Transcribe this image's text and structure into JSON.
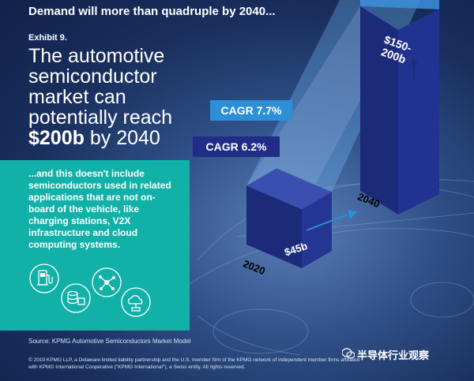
{
  "header": {
    "title": "Demand will more than quadruple by 2040...",
    "exhibit": "Exhibit 9.",
    "headline_main": "The automotive semiconductor market can potentially reach",
    "headline_value": "$200b",
    "headline_suffix": "by 2040"
  },
  "callout": {
    "text": "...and this doesn't include semiconductors used in related applications that are not on-board of the vehicle, like charging stations, V2X infrastructure and cloud computing systems.",
    "icons": [
      "charging-station-icon",
      "server-stack-icon",
      "network-nodes-icon",
      "cloud-computing-icon"
    ]
  },
  "chart_data": {
    "type": "bar",
    "title": "Automotive semiconductor market",
    "categories": [
      "2020",
      "2040"
    ],
    "values": [
      45,
      175
    ],
    "value_labels": [
      "$45b",
      "$150-200b"
    ],
    "range_2040": [
      150,
      200
    ],
    "ylim": [
      0,
      210
    ],
    "annotations": [
      {
        "label": "CAGR 7.7%",
        "color": "#2d8fd6"
      },
      {
        "label": "CAGR 6.2%",
        "color": "#1f2d86"
      }
    ]
  },
  "colors": {
    "teal": "#12b1a8",
    "bar_front": "#1c2a7a",
    "bar_top": "#2b3c9c",
    "bar_highlight": "#4ea3e6"
  },
  "footer": {
    "source": "Source: KPMG Automotive Semiconductors Market Model",
    "legal": "© 2019 KPMG LLP, a Delaware limited liability partnership and the U.S. member firm of the KPMG network of independent member firms affiliated with KPMG International Cooperative (\"KPMG International\"), a Swiss entity. All rights reserved.",
    "watermark": "半导体行业观察"
  }
}
